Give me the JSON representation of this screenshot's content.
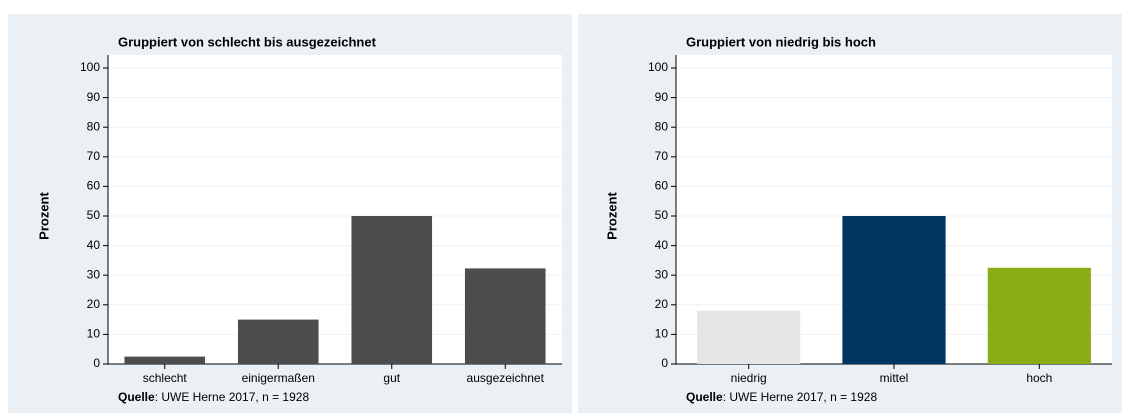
{
  "chart_data": [
    {
      "type": "bar",
      "title": "Gruppiert von schlecht bis ausgezeichnet",
      "y_label": "Prozent",
      "categories": [
        "schlecht",
        "einigermaßen",
        "gut",
        "ausgezeichnet"
      ],
      "values": [
        2.5,
        15,
        50,
        32.3
      ],
      "color": "#4d4d4d",
      "ylim": [
        0,
        100
      ],
      "yticks": [
        0,
        10,
        20,
        30,
        40,
        50,
        60,
        70,
        80,
        90,
        100
      ],
      "grid": true,
      "source_label": "Quelle",
      "source_text": ": UWE Herne 2017, n = 1928"
    },
    {
      "type": "bar",
      "title": "Gruppiert von niedrig bis hoch",
      "y_label": "Prozent",
      "categories": [
        "niedrig",
        "mittel",
        "hoch"
      ],
      "values": [
        18,
        50,
        32.5
      ],
      "colors": [
        "#e6e6e6",
        "#00355f",
        "#8aad15"
      ],
      "ylim": [
        0,
        100
      ],
      "yticks": [
        0,
        10,
        20,
        30,
        40,
        50,
        60,
        70,
        80,
        90,
        100
      ],
      "grid": true,
      "source_label": "Quelle",
      "source_text": ": UWE Herne 2017, n = 1928"
    }
  ]
}
